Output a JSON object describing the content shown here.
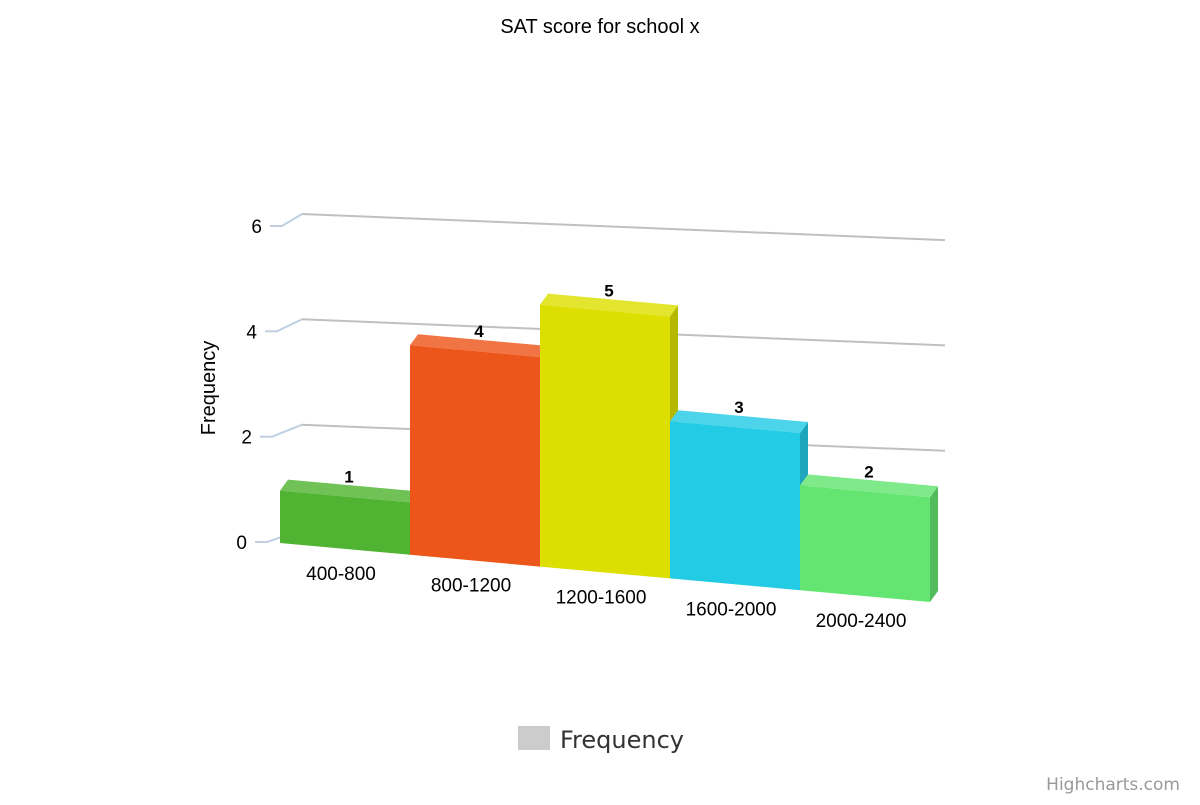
{
  "chart_data": {
    "type": "bar",
    "title": "SAT score for school x",
    "xlabel": "",
    "ylabel": "Frequency",
    "categories": [
      "400-800",
      "800-1200",
      "1200-1600",
      "1600-2000",
      "2000-2400"
    ],
    "series": [
      {
        "name": "Frequency",
        "values": [
          1,
          4,
          5,
          3,
          2
        ]
      }
    ],
    "ylim": [
      0,
      6
    ],
    "yticks": [
      "0",
      "2",
      "4",
      "6"
    ],
    "bar_colors": [
      "#50b432",
      "#ed561b",
      "#dddf00",
      "#24cbe5",
      "#64e572"
    ],
    "data_labels": true,
    "grid": true,
    "legend": {
      "position": "bottom-center",
      "label": "Frequency",
      "swatch_color": "#cccccc"
    },
    "projection": "3d"
  },
  "credits": "Highcharts.com"
}
